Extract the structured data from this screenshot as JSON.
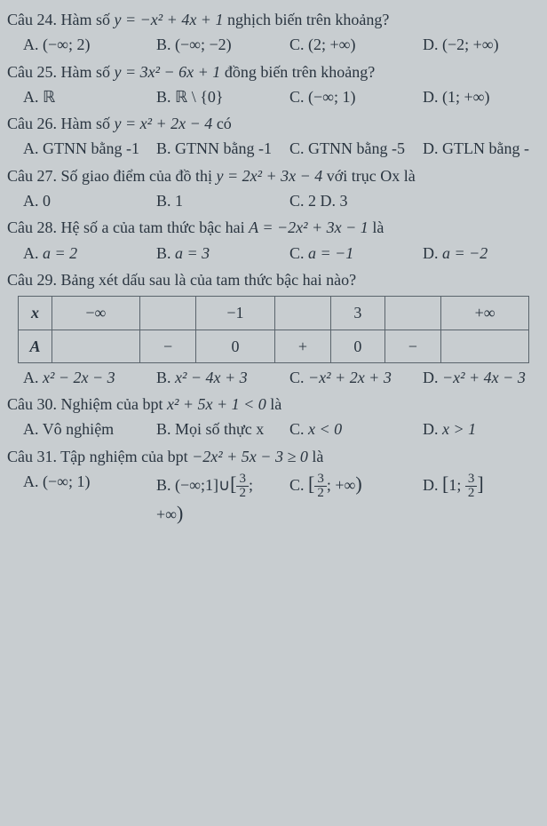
{
  "q24": {
    "stem_pre": "Câu 24. Hàm số ",
    "fn": "y = −x² + 4x + 1",
    "stem_post": " nghịch biến trên khoảng?",
    "A": "(−∞; 2)",
    "B": "(−∞; −2)",
    "C": "(2; +∞)",
    "D": "(−2; +∞)"
  },
  "q25": {
    "stem_pre": "Câu 25. Hàm số ",
    "fn": "y = 3x² − 6x + 1",
    "stem_post": " đồng biến trên khoảng?",
    "A": "ℝ",
    "B": "ℝ \\ {0}",
    "C": "(−∞; 1)",
    "D": "(1; +∞)"
  },
  "q26": {
    "stem_pre": "Câu 26. Hàm số ",
    "fn": "y = x² + 2x − 4",
    "stem_post": " có",
    "A": "GTNN bằng -1",
    "B": "GTNN bằng -1",
    "C": "GTNN bằng -5",
    "D": "GTLN bằng -"
  },
  "q27": {
    "stem_pre": "Câu 27. Số giao điểm của đồ thị ",
    "fn": "y = 2x² + 3x − 4",
    "stem_post": " với trục Ox là",
    "A": "0",
    "B": "1",
    "C": "2 D. 3"
  },
  "q28": {
    "stem_pre": "Câu 28. Hệ số a của tam thức bậc hai ",
    "fn": "A = −2x² + 3x − 1",
    "stem_post": " là",
    "A": "a = 2",
    "B": "a = 3",
    "C": "a = −1",
    "D": "a = −2"
  },
  "q29": {
    "stem": "Câu 29. Bảng xét dấu sau là của tam thức bậc hai nào?",
    "header_x": "x",
    "header_A": "A",
    "vals": [
      "−∞",
      "−1",
      "3",
      "+∞"
    ],
    "signs": [
      "−",
      "0",
      "+",
      "0",
      "−"
    ],
    "A": "x² − 2x − 3",
    "B": "x² − 4x + 3",
    "C": "−x² + 2x + 3",
    "D": "−x² + 4x − 3"
  },
  "q30": {
    "stem_pre": "Câu 30. Nghiệm của bpt ",
    "fn": "x² + 5x + 1 < 0",
    "stem_post": " là",
    "A": "Vô nghiệm",
    "B": "Mọi số thực x",
    "C": "x < 0",
    "D": "x > 1"
  },
  "q31": {
    "stem_pre": "Câu 31. Tập nghiệm của bpt ",
    "fn": "−2x² + 5x − 3 ≥ 0",
    "stem_post": " là",
    "A": "(−∞; 1)"
  }
}
